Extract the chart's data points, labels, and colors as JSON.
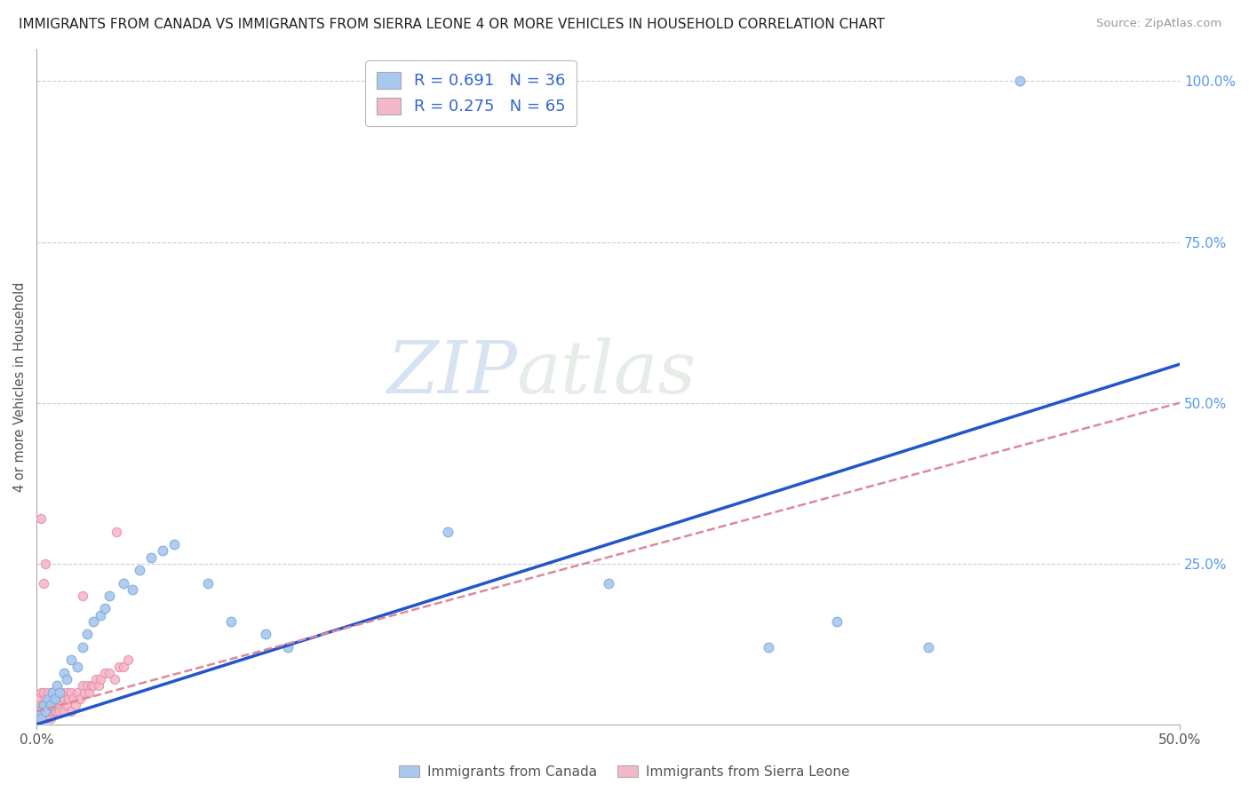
{
  "title": "IMMIGRANTS FROM CANADA VS IMMIGRANTS FROM SIERRA LEONE 4 OR MORE VEHICLES IN HOUSEHOLD CORRELATION CHART",
  "source": "Source: ZipAtlas.com",
  "ylabel": "4 or more Vehicles in Household",
  "xlim": [
    0.0,
    0.5
  ],
  "ylim": [
    0.0,
    1.05
  ],
  "R_canada": 0.691,
  "N_canada": 36,
  "R_sierra": 0.275,
  "N_sierra": 65,
  "canada_color": "#a8c8f0",
  "canada_edge_color": "#7aaad8",
  "sierra_color": "#f5b8c8",
  "sierra_edge_color": "#e890a8",
  "canada_line_color": "#2255cc",
  "sierra_line_color": "#dd8899",
  "background_color": "#ffffff",
  "grid_color": "#cccccc",
  "legend_label_canada": "Immigrants from Canada",
  "legend_label_sierra": "Immigrants from Sierra Leone",
  "watermark_zip": "ZIP",
  "watermark_atlas": "atlas",
  "canada_scatter_x": [
    0.001,
    0.002,
    0.003,
    0.004,
    0.005,
    0.006,
    0.007,
    0.008,
    0.009,
    0.01,
    0.012,
    0.013,
    0.015,
    0.018,
    0.02,
    0.022,
    0.025,
    0.028,
    0.03,
    0.032,
    0.038,
    0.042,
    0.045,
    0.05,
    0.055,
    0.06,
    0.075,
    0.085,
    0.1,
    0.11,
    0.18,
    0.25,
    0.32,
    0.35,
    0.39,
    0.43
  ],
  "canada_scatter_y": [
    0.02,
    0.01,
    0.03,
    0.02,
    0.04,
    0.03,
    0.05,
    0.04,
    0.06,
    0.05,
    0.08,
    0.07,
    0.1,
    0.09,
    0.12,
    0.14,
    0.16,
    0.17,
    0.18,
    0.2,
    0.22,
    0.21,
    0.24,
    0.26,
    0.27,
    0.28,
    0.22,
    0.16,
    0.14,
    0.12,
    0.3,
    0.22,
    0.12,
    0.16,
    0.12,
    1.0
  ],
  "sierra_scatter_x": [
    0.0005,
    0.001,
    0.001,
    0.001,
    0.002,
    0.002,
    0.002,
    0.003,
    0.003,
    0.003,
    0.003,
    0.004,
    0.004,
    0.004,
    0.005,
    0.005,
    0.005,
    0.006,
    0.006,
    0.006,
    0.006,
    0.007,
    0.007,
    0.007,
    0.008,
    0.008,
    0.008,
    0.009,
    0.009,
    0.009,
    0.01,
    0.01,
    0.011,
    0.011,
    0.012,
    0.012,
    0.013,
    0.013,
    0.014,
    0.015,
    0.015,
    0.016,
    0.017,
    0.018,
    0.019,
    0.02,
    0.021,
    0.022,
    0.023,
    0.024,
    0.025,
    0.026,
    0.027,
    0.028,
    0.03,
    0.032,
    0.034,
    0.036,
    0.038,
    0.04,
    0.002,
    0.003,
    0.004,
    0.02,
    0.035
  ],
  "sierra_scatter_y": [
    0.02,
    0.01,
    0.03,
    0.04,
    0.02,
    0.03,
    0.05,
    0.01,
    0.03,
    0.05,
    0.02,
    0.01,
    0.03,
    0.04,
    0.02,
    0.03,
    0.05,
    0.01,
    0.02,
    0.04,
    0.03,
    0.02,
    0.04,
    0.05,
    0.02,
    0.03,
    0.04,
    0.02,
    0.03,
    0.05,
    0.02,
    0.04,
    0.03,
    0.05,
    0.02,
    0.04,
    0.03,
    0.05,
    0.04,
    0.02,
    0.05,
    0.04,
    0.03,
    0.05,
    0.04,
    0.06,
    0.05,
    0.06,
    0.05,
    0.06,
    0.06,
    0.07,
    0.06,
    0.07,
    0.08,
    0.08,
    0.07,
    0.09,
    0.09,
    0.1,
    0.32,
    0.22,
    0.25,
    0.2,
    0.3
  ],
  "canada_line_x0": 0.0,
  "canada_line_y0": 0.0,
  "canada_line_x1": 0.5,
  "canada_line_y1": 0.56,
  "sierra_line_x0": 0.0,
  "sierra_line_y0": 0.02,
  "sierra_line_x1": 0.5,
  "sierra_line_y1": 0.5
}
